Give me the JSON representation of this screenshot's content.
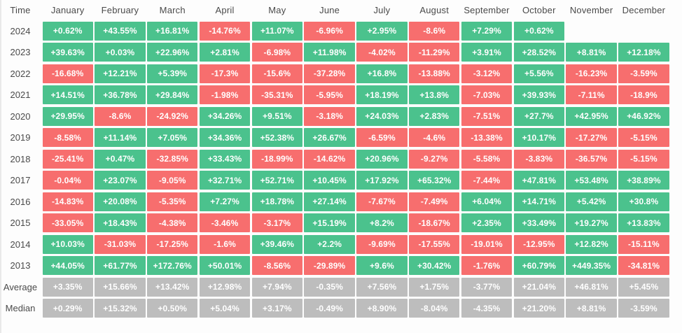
{
  "colors": {
    "positive": "#4bc28d",
    "negative": "#f76e6e",
    "summary": "#bdbdbd",
    "header_text": "#4a4a4a",
    "background": "#fdfdfd"
  },
  "table": {
    "header": [
      "Time",
      "January",
      "February",
      "March",
      "April",
      "May",
      "June",
      "July",
      "August",
      "September",
      "October",
      "November",
      "December"
    ],
    "rows": [
      {
        "label": "2024",
        "type": "year",
        "values": [
          "+0.62%",
          "+43.55%",
          "+16.81%",
          "-14.76%",
          "+11.07%",
          "-6.96%",
          "+2.95%",
          "-8.6%",
          "+7.29%",
          "+0.62%",
          "",
          ""
        ]
      },
      {
        "label": "2023",
        "type": "year",
        "values": [
          "+39.63%",
          "+0.03%",
          "+22.96%",
          "+2.81%",
          "-6.98%",
          "+11.98%",
          "-4.02%",
          "-11.29%",
          "+3.91%",
          "+28.52%",
          "+8.81%",
          "+12.18%"
        ]
      },
      {
        "label": "2022",
        "type": "year",
        "values": [
          "-16.68%",
          "+12.21%",
          "+5.39%",
          "-17.3%",
          "-15.6%",
          "-37.28%",
          "+16.8%",
          "-13.88%",
          "-3.12%",
          "+5.56%",
          "-16.23%",
          "-3.59%"
        ]
      },
      {
        "label": "2021",
        "type": "year",
        "values": [
          "+14.51%",
          "+36.78%",
          "+29.84%",
          "-1.98%",
          "-35.31%",
          "-5.95%",
          "+18.19%",
          "+13.8%",
          "-7.03%",
          "+39.93%",
          "-7.11%",
          "-18.9%"
        ]
      },
      {
        "label": "2020",
        "type": "year",
        "values": [
          "+29.95%",
          "-8.6%",
          "-24.92%",
          "+34.26%",
          "+9.51%",
          "-3.18%",
          "+24.03%",
          "+2.83%",
          "-7.51%",
          "+27.7%",
          "+42.95%",
          "+46.92%"
        ]
      },
      {
        "label": "2019",
        "type": "year",
        "values": [
          "-8.58%",
          "+11.14%",
          "+7.05%",
          "+34.36%",
          "+52.38%",
          "+26.67%",
          "-6.59%",
          "-4.6%",
          "-13.38%",
          "+10.17%",
          "-17.27%",
          "-5.15%"
        ]
      },
      {
        "label": "2018",
        "type": "year",
        "values": [
          "-25.41%",
          "+0.47%",
          "-32.85%",
          "+33.43%",
          "-18.99%",
          "-14.62%",
          "+20.96%",
          "-9.27%",
          "-5.58%",
          "-3.83%",
          "-36.57%",
          "-5.15%"
        ]
      },
      {
        "label": "2017",
        "type": "year",
        "values": [
          "-0.04%",
          "+23.07%",
          "-9.05%",
          "+32.71%",
          "+52.71%",
          "+10.45%",
          "+17.92%",
          "+65.32%",
          "-7.44%",
          "+47.81%",
          "+53.48%",
          "+38.89%"
        ]
      },
      {
        "label": "2016",
        "type": "year",
        "values": [
          "-14.83%",
          "+20.08%",
          "-5.35%",
          "+7.27%",
          "+18.78%",
          "+27.14%",
          "-7.67%",
          "-7.49%",
          "+6.04%",
          "+14.71%",
          "+5.42%",
          "+30.8%"
        ]
      },
      {
        "label": "2015",
        "type": "year",
        "values": [
          "-33.05%",
          "+18.43%",
          "-4.38%",
          "-3.46%",
          "-3.17%",
          "+15.19%",
          "+8.2%",
          "-18.67%",
          "+2.35%",
          "+33.49%",
          "+19.27%",
          "+13.83%"
        ]
      },
      {
        "label": "2014",
        "type": "year",
        "values": [
          "+10.03%",
          "-31.03%",
          "-17.25%",
          "-1.6%",
          "+39.46%",
          "+2.2%",
          "-9.69%",
          "-17.55%",
          "-19.01%",
          "-12.95%",
          "+12.82%",
          "-15.11%"
        ]
      },
      {
        "label": "2013",
        "type": "year",
        "values": [
          "+44.05%",
          "+61.77%",
          "+172.76%",
          "+50.01%",
          "-8.56%",
          "-29.89%",
          "+9.6%",
          "+30.42%",
          "-1.76%",
          "+60.79%",
          "+449.35%",
          "-34.81%"
        ]
      },
      {
        "label": "Average",
        "type": "summary",
        "values": [
          "+3.35%",
          "+15.66%",
          "+13.42%",
          "+12.98%",
          "+7.94%",
          "-0.35%",
          "+7.56%",
          "+1.75%",
          "-3.77%",
          "+21.04%",
          "+46.81%",
          "+5.45%"
        ]
      },
      {
        "label": "Median",
        "type": "summary",
        "values": [
          "+0.29%",
          "+15.32%",
          "+0.50%",
          "+5.04%",
          "+3.17%",
          "-0.49%",
          "+8.90%",
          "-8.04%",
          "-4.35%",
          "+21.20%",
          "+8.81%",
          "-3.59%"
        ]
      }
    ]
  },
  "chart_data": {
    "type": "heatmap",
    "unit": "%",
    "columns": [
      "January",
      "February",
      "March",
      "April",
      "May",
      "June",
      "July",
      "August",
      "September",
      "October",
      "November",
      "December"
    ],
    "rows": [
      "2024",
      "2023",
      "2022",
      "2021",
      "2020",
      "2019",
      "2018",
      "2017",
      "2016",
      "2015",
      "2014",
      "2013",
      "Average",
      "Median"
    ],
    "values": [
      [
        0.62,
        43.55,
        16.81,
        -14.76,
        11.07,
        -6.96,
        2.95,
        -8.6,
        7.29,
        0.62,
        null,
        null
      ],
      [
        39.63,
        0.03,
        22.96,
        2.81,
        -6.98,
        11.98,
        -4.02,
        -11.29,
        3.91,
        28.52,
        8.81,
        12.18
      ],
      [
        -16.68,
        12.21,
        5.39,
        -17.3,
        -15.6,
        -37.28,
        16.8,
        -13.88,
        -3.12,
        5.56,
        -16.23,
        -3.59
      ],
      [
        14.51,
        36.78,
        29.84,
        -1.98,
        -35.31,
        -5.95,
        18.19,
        13.8,
        -7.03,
        39.93,
        -7.11,
        -18.9
      ],
      [
        29.95,
        -8.6,
        -24.92,
        34.26,
        9.51,
        -3.18,
        24.03,
        2.83,
        -7.51,
        27.7,
        42.95,
        46.92
      ],
      [
        -8.58,
        11.14,
        7.05,
        34.36,
        52.38,
        26.67,
        -6.59,
        -4.6,
        -13.38,
        10.17,
        -17.27,
        -5.15
      ],
      [
        -25.41,
        0.47,
        -32.85,
        33.43,
        -18.99,
        -14.62,
        20.96,
        -9.27,
        -5.58,
        -3.83,
        -36.57,
        -5.15
      ],
      [
        -0.04,
        23.07,
        -9.05,
        32.71,
        52.71,
        10.45,
        17.92,
        65.32,
        -7.44,
        47.81,
        53.48,
        38.89
      ],
      [
        -14.83,
        20.08,
        -5.35,
        7.27,
        18.78,
        27.14,
        -7.67,
        -7.49,
        6.04,
        14.71,
        5.42,
        30.8
      ],
      [
        -33.05,
        18.43,
        -4.38,
        -3.46,
        -3.17,
        15.19,
        8.2,
        -18.67,
        2.35,
        33.49,
        19.27,
        13.83
      ],
      [
        10.03,
        -31.03,
        -17.25,
        -1.6,
        39.46,
        2.2,
        -9.69,
        -17.55,
        -19.01,
        -12.95,
        12.82,
        -15.11
      ],
      [
        44.05,
        61.77,
        172.76,
        50.01,
        -8.56,
        -29.89,
        9.6,
        30.42,
        -1.76,
        60.79,
        449.35,
        -34.81
      ],
      [
        3.35,
        15.66,
        13.42,
        12.98,
        7.94,
        -0.35,
        7.56,
        1.75,
        -3.77,
        21.04,
        46.81,
        5.45
      ],
      [
        0.29,
        15.32,
        0.5,
        5.04,
        3.17,
        -0.49,
        8.9,
        -8.04,
        -4.35,
        21.2,
        8.81,
        -3.59
      ]
    ],
    "title": "",
    "legend": "off",
    "layout_hint": "table heatmap, green=positive, red=negative, gray=summary rows"
  }
}
